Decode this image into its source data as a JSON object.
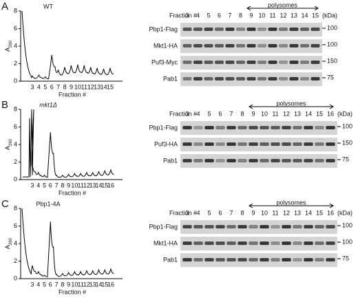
{
  "panels": [
    {
      "letter": "A",
      "strain": "WT",
      "y_label": "A",
      "y_label_sub": "260",
      "yticks": [
        "0",
        "2",
        "4",
        "6",
        "8"
      ],
      "x_label": "Fraction #",
      "profile_fractions": [
        "3",
        "4",
        "5",
        "6",
        "7",
        "8",
        "9",
        "10",
        "11",
        "12",
        "13",
        "14",
        "15"
      ],
      "blot_header": "Fraction #",
      "blot_fractions": [
        "3",
        "4",
        "5",
        "6",
        "7",
        "8",
        "9",
        "10",
        "11",
        "12",
        "13",
        "14",
        "15"
      ],
      "polysomes": "polysomes",
      "kda": "(kDa)",
      "rows": [
        {
          "label": "Pbp1-Flag",
          "marker": "100"
        },
        {
          "label": "Mkt1-HA",
          "marker": "100"
        },
        {
          "label": "Puf3-Myc",
          "marker": "150"
        },
        {
          "label": "Pab1",
          "marker": "75"
        }
      ]
    },
    {
      "letter": "B",
      "strain": "mkt1Δ",
      "y_label": "A",
      "y_label_sub": "260",
      "yticks": [
        "0",
        "2",
        "4",
        "6",
        "8"
      ],
      "x_label": "Fraction #",
      "profile_fractions": [
        "3",
        "4",
        "5",
        "6",
        "7",
        "8",
        "9",
        "10",
        "11",
        "12",
        "13",
        "14",
        "15",
        "16"
      ],
      "blot_header": "Fraction #",
      "blot_fractions": [
        "3",
        "4",
        "5",
        "6",
        "7",
        "8",
        "9",
        "10",
        "11",
        "12",
        "13",
        "14",
        "15",
        "16"
      ],
      "polysomes": "polysomes",
      "kda": "(kDa)",
      "rows": [
        {
          "label": "Pbp1-Flag",
          "marker": "100"
        },
        {
          "label": "Puf3-HA",
          "marker": "150"
        },
        {
          "label": "Pab1",
          "marker": "75"
        }
      ]
    },
    {
      "letter": "C",
      "strain": "Pbp1-4A",
      "y_label": "A",
      "y_label_sub": "260",
      "yticks": [
        "0",
        "2",
        "4",
        "6",
        "8"
      ],
      "x_label": "Fraction #",
      "profile_fractions": [
        "3",
        "4",
        "5",
        "6",
        "7",
        "8",
        "9",
        "10",
        "11",
        "12",
        "13",
        "14",
        "15",
        "16"
      ],
      "blot_header": "Fraction #",
      "blot_fractions": [
        "3",
        "4",
        "5",
        "6",
        "7",
        "8",
        "9",
        "10",
        "11",
        "12",
        "13",
        "14",
        "15",
        "16"
      ],
      "polysomes": "polysomes",
      "kda": "(kDa)",
      "rows": [
        {
          "label": "Pbp1-Flag",
          "marker": "100"
        },
        {
          "label": "Mkt1-HA",
          "marker": "100"
        },
        {
          "label": "Pab1",
          "marker": "75"
        }
      ]
    }
  ]
}
